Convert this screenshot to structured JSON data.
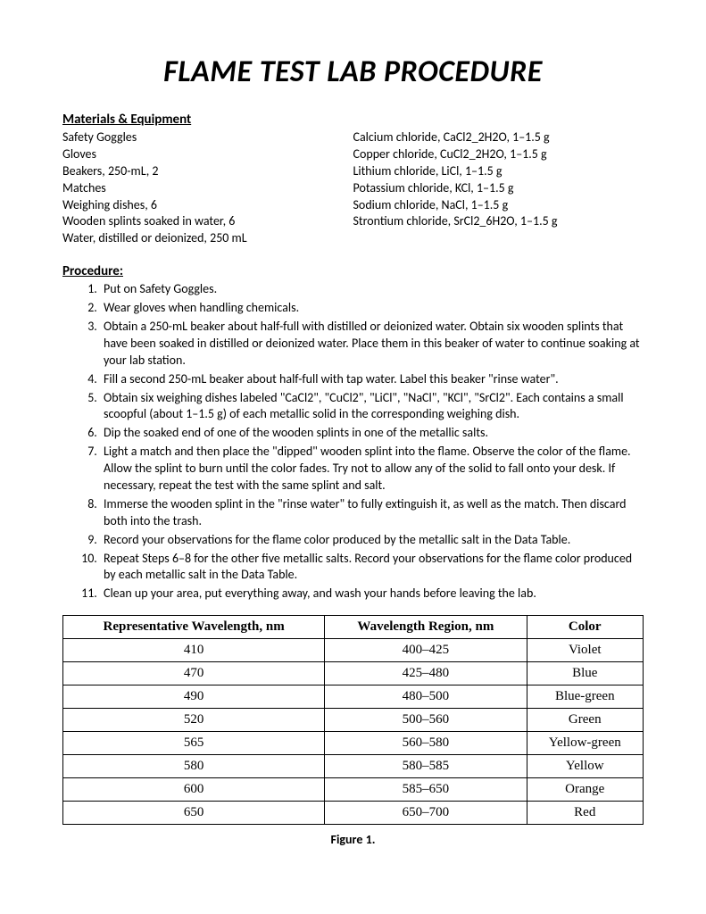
{
  "title": "FLAME TEST LAB PROCEDURE",
  "materials": {
    "heading": "Materials & Equipment",
    "left": [
      "Safety Goggles",
      "Gloves",
      "Beakers, 250-mL, 2",
      "Matches",
      "Weighing dishes, 6",
      "Wooden splints soaked in water, 6",
      "Water, distilled or deionized, 250 mL"
    ],
    "right": [
      "Calcium chloride, CaCl2_2H2O, 1–1.5 g",
      "Copper chloride, CuCl2_2H2O, 1–1.5 g",
      "Lithium chloride, LiCl, 1–1.5 g",
      "Potassium chloride, KCl, 1–1.5 g",
      "Sodium chloride, NaCl, 1–1.5 g",
      "Strontium chloride, SrCl2_6H2O, 1–1.5 g"
    ]
  },
  "procedure": {
    "heading": "Procedure:",
    "steps": [
      "Put on Safety Goggles.",
      "Wear gloves when handling chemicals.",
      "Obtain a 250-mL beaker about half-full with distilled or deionized water.  Obtain six wooden splints that have been soaked in distilled or deionized water.  Place them in this beaker of water to continue soaking at your lab station.",
      "Fill a second 250-mL beaker about half-full with tap water.  Label this beaker \"rinse water\".",
      "Obtain six weighing dishes labeled \"CaCl2\", \"CuCl2\", \"LiCl\", \"NaCl\", \"KCl\", \"SrCl2\".  Each contains a small scoopful (about 1–1.5 g) of each metallic solid in the corresponding weighing dish.",
      "Dip the soaked end of one of the wooden splints in one of the metallic salts.",
      "Light a match and then place the \"dipped\" wooden splint into the flame.  Observe the color of the flame. Allow the splint to burn until the color fades. Try not to allow any of the solid to fall onto your desk.  If necessary, repeat the test with the same splint and salt.",
      "Immerse the wooden splint in the \"rinse water\" to fully extinguish it, as well as the match.  Then discard both into the trash.",
      "Record your observations for the flame color produced by the metallic salt in the Data Table.",
      "Repeat Steps 6–8 for the other five metallic salts. Record your observations for the flame color produced by each metallic salt in the Data Table.",
      "Clean up your area, put everything away, and wash your hands before leaving the lab."
    ]
  },
  "table": {
    "headers": [
      "Representative Wavelength, nm",
      "Wavelength Region, nm",
      "Color"
    ],
    "rows": [
      [
        "410",
        "400–425",
        "Violet"
      ],
      [
        "470",
        "425–480",
        "Blue"
      ],
      [
        "490",
        "480–500",
        "Blue-green"
      ],
      [
        "520",
        "500–560",
        "Green"
      ],
      [
        "565",
        "560–580",
        "Yellow-green"
      ],
      [
        "580",
        "580–585",
        "Yellow"
      ],
      [
        "600",
        "585–650",
        "Orange"
      ],
      [
        "650",
        "650–700",
        "Red"
      ]
    ],
    "caption": "Figure 1."
  }
}
